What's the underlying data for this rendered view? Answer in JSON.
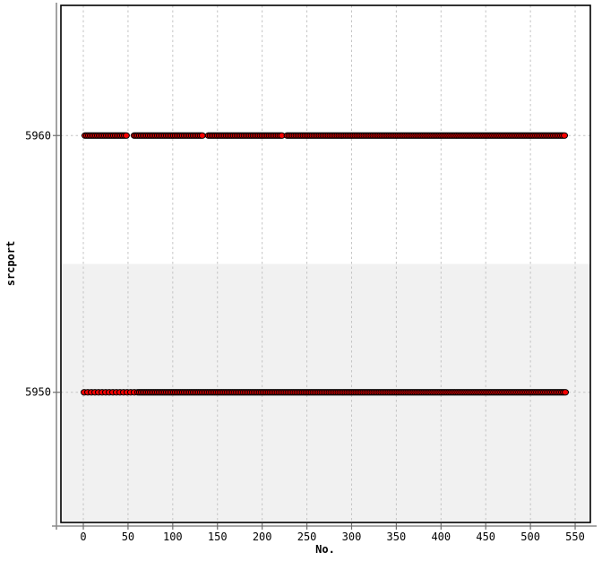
{
  "figure": {
    "background_color": "#ffffff",
    "plot_background_color": "#ffffff",
    "border_color": "#000000",
    "outer_axis_color": "#8c8c8c",
    "grid_color": "#c4c4c4",
    "tick_color": "#6e6e6e",
    "band_color": "#f1f1f1"
  },
  "chart_data": {
    "type": "scatter",
    "title": "",
    "xlabel": "No.",
    "ylabel": "srcport",
    "xlim": [
      -25.06,
      567.0
    ],
    "ylim": [
      5944.93,
      5965.07
    ],
    "grid": true,
    "x_ticks": [
      0,
      50,
      100,
      150,
      200,
      250,
      300,
      350,
      400,
      450,
      500,
      550
    ],
    "y_ticks": [
      5950,
      5960
    ],
    "y_tick_labels": [
      "5950",
      "5960"
    ],
    "bands": [
      {
        "y_from": 5944.93,
        "y_to": 5955.0
      }
    ],
    "marker": {
      "shape": "circle",
      "fill": "#f40000",
      "stroke": "#000000",
      "rx": 3.5,
      "ry": 3.1
    },
    "series": [
      {
        "name": "srcport 5960",
        "y": 5960,
        "x_segments_from_to_step": [
          [
            2,
            48,
            2
          ],
          [
            57,
            134,
            2
          ],
          [
            140,
            222,
            2
          ],
          [
            228,
            538,
            2
          ]
        ]
      },
      {
        "name": "srcport 5950",
        "y": 5950,
        "x_segments_from_to_step": [
          [
            1,
            61,
            4
          ],
          [
            63,
            539,
            2
          ]
        ]
      }
    ]
  }
}
